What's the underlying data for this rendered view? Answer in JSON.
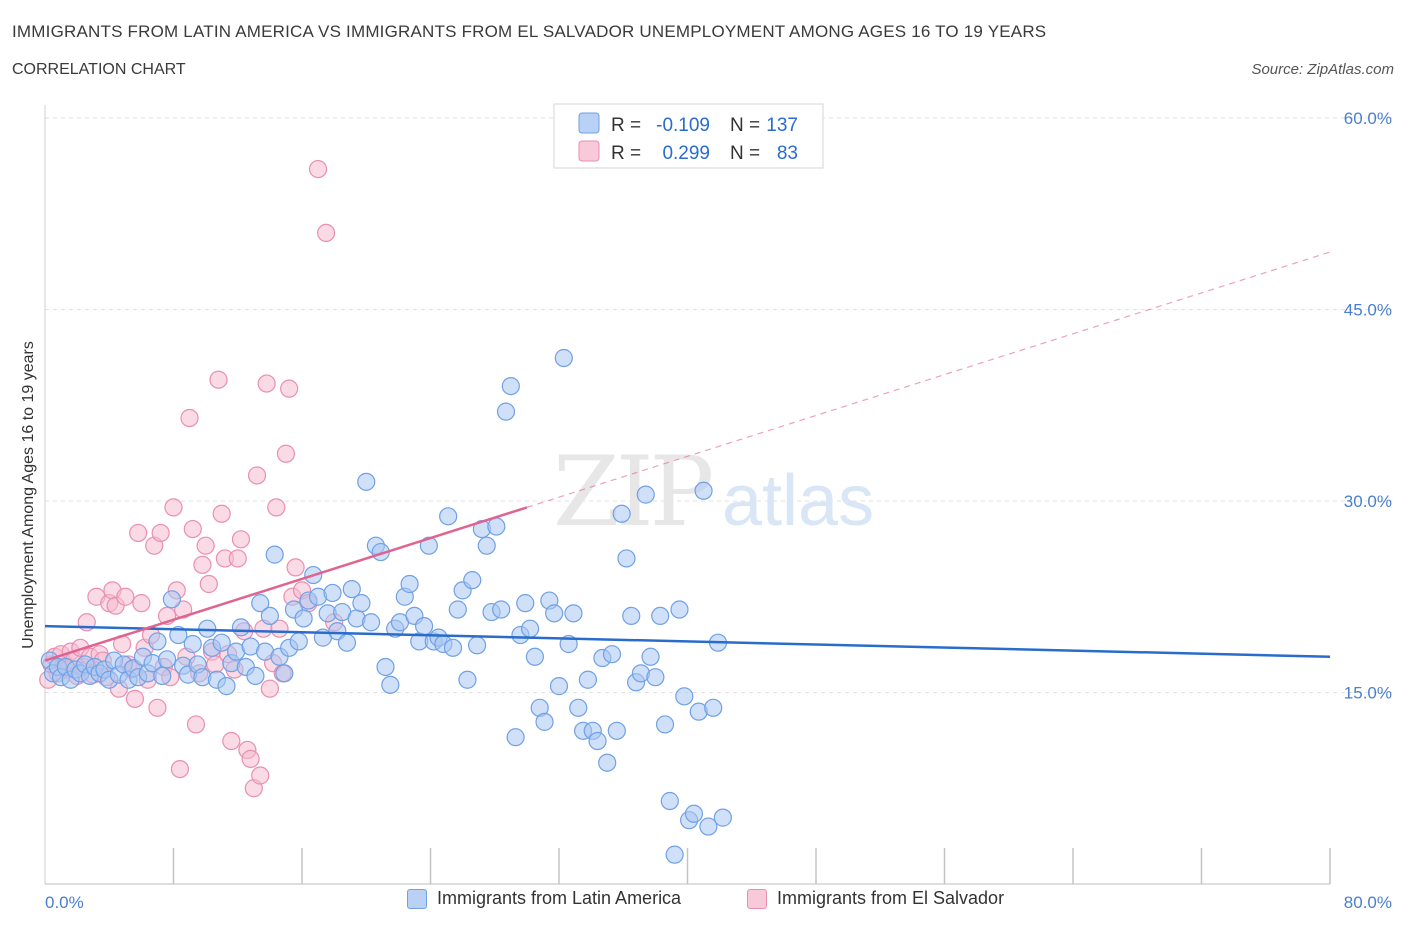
{
  "header": {
    "title": "IMMIGRANTS FROM LATIN AMERICA VS IMMIGRANTS FROM EL SALVADOR UNEMPLOYMENT AMONG AGES 16 TO 19 YEARS",
    "subtitle": "CORRELATION CHART",
    "source": "Source: ZipAtlas.com"
  },
  "watermark": {
    "zip": "ZIP",
    "atlas": "atlas"
  },
  "stats_legend": {
    "rows": [
      {
        "r_label": "R =",
        "r_value": "-0.109",
        "n_label": "N =",
        "n_value": "137"
      },
      {
        "r_label": "R =",
        "r_value": "0.299",
        "n_label": "N =",
        "n_value": "83"
      }
    ]
  },
  "colors": {
    "blue": "#6fa1e6",
    "blue_fill": "#a9c6f2",
    "blue_line": "#2a6ccc",
    "pink": "#ea8fb0",
    "pink_fill": "#f5bcd0",
    "pink_line": "#e0648f",
    "tick_text": "#4a7fcf"
  },
  "chart_data": {
    "type": "scatter",
    "title": "IMMIGRANTS FROM LATIN AMERICA VS IMMIGRANTS FROM EL SALVADOR UNEMPLOYMENT AMONG AGES 16 TO 19 YEARS",
    "xlabel": "",
    "ylabel": "Unemployment Among Ages 16 to 19 years",
    "xlim": [
      0,
      80
    ],
    "ylim": [
      0,
      60
    ],
    "x_tick_labels": [
      "0.0%",
      "80.0%"
    ],
    "y_ticks": [
      15,
      30,
      45,
      60
    ],
    "y_tick_labels": [
      "15.0%",
      "30.0%",
      "45.0%",
      "60.0%"
    ],
    "grid": true,
    "legend_position": "bottom",
    "series": [
      {
        "name": "Immigrants from Latin America",
        "color": "blue",
        "r": -0.109,
        "n": 137,
        "trend": {
          "x": [
            0,
            80
          ],
          "y": [
            20.2,
            17.8
          ]
        },
        "points": [
          [
            0.3,
            17.5
          ],
          [
            0.5,
            16.5
          ],
          [
            0.8,
            17.0
          ],
          [
            1.0,
            16.2
          ],
          [
            1.3,
            17.0
          ],
          [
            1.6,
            16.0
          ],
          [
            1.9,
            16.8
          ],
          [
            2.2,
            16.5
          ],
          [
            2.5,
            17.2
          ],
          [
            2.8,
            16.3
          ],
          [
            3.1,
            17.0
          ],
          [
            3.4,
            16.5
          ],
          [
            3.7,
            16.8
          ],
          [
            4.0,
            16.0
          ],
          [
            4.3,
            17.5
          ],
          [
            4.6,
            16.4
          ],
          [
            4.9,
            17.2
          ],
          [
            5.2,
            16.0
          ],
          [
            5.5,
            16.9
          ],
          [
            5.8,
            16.2
          ],
          [
            6.1,
            17.8
          ],
          [
            6.4,
            16.5
          ],
          [
            6.7,
            17.3
          ],
          [
            7.0,
            19.0
          ],
          [
            7.3,
            16.3
          ],
          [
            7.6,
            17.6
          ],
          [
            7.9,
            22.3
          ],
          [
            8.3,
            19.5
          ],
          [
            8.6,
            17.1
          ],
          [
            8.9,
            16.4
          ],
          [
            9.2,
            18.8
          ],
          [
            9.5,
            17.2
          ],
          [
            9.8,
            16.2
          ],
          [
            10.1,
            20.0
          ],
          [
            10.4,
            18.5
          ],
          [
            10.7,
            16.0
          ],
          [
            11.0,
            18.9
          ],
          [
            11.3,
            15.5
          ],
          [
            11.6,
            17.3
          ],
          [
            11.9,
            18.2
          ],
          [
            12.2,
            20.1
          ],
          [
            12.5,
            17.0
          ],
          [
            12.8,
            18.6
          ],
          [
            13.1,
            16.3
          ],
          [
            13.4,
            22.0
          ],
          [
            13.7,
            18.2
          ],
          [
            14.0,
            21.0
          ],
          [
            14.3,
            25.8
          ],
          [
            14.6,
            17.8
          ],
          [
            14.9,
            16.5
          ],
          [
            15.2,
            18.5
          ],
          [
            15.5,
            21.5
          ],
          [
            15.8,
            19.0
          ],
          [
            16.1,
            20.8
          ],
          [
            16.4,
            22.2
          ],
          [
            16.7,
            24.2
          ],
          [
            17.0,
            22.5
          ],
          [
            17.3,
            19.3
          ],
          [
            17.6,
            21.2
          ],
          [
            17.9,
            22.8
          ],
          [
            18.2,
            19.8
          ],
          [
            18.5,
            21.3
          ],
          [
            18.8,
            18.9
          ],
          [
            19.1,
            23.1
          ],
          [
            19.4,
            20.8
          ],
          [
            19.7,
            22.0
          ],
          [
            20.0,
            31.5
          ],
          [
            20.3,
            20.5
          ],
          [
            20.6,
            26.5
          ],
          [
            20.9,
            26.0
          ],
          [
            21.2,
            17.0
          ],
          [
            21.5,
            15.6
          ],
          [
            21.8,
            20.0
          ],
          [
            22.1,
            20.5
          ],
          [
            22.4,
            22.5
          ],
          [
            22.7,
            23.5
          ],
          [
            23.0,
            21.0
          ],
          [
            23.3,
            19.0
          ],
          [
            23.6,
            20.2
          ],
          [
            23.9,
            26.5
          ],
          [
            24.2,
            19.0
          ],
          [
            24.5,
            19.3
          ],
          [
            24.8,
            18.8
          ],
          [
            25.1,
            28.8
          ],
          [
            25.4,
            18.5
          ],
          [
            25.7,
            21.5
          ],
          [
            26.0,
            23.0
          ],
          [
            26.3,
            16.0
          ],
          [
            26.6,
            23.8
          ],
          [
            26.9,
            18.7
          ],
          [
            27.2,
            27.8
          ],
          [
            27.5,
            26.5
          ],
          [
            27.8,
            21.3
          ],
          [
            28.1,
            28.0
          ],
          [
            28.4,
            21.5
          ],
          [
            28.7,
            37.0
          ],
          [
            29.0,
            39.0
          ],
          [
            29.3,
            11.5
          ],
          [
            29.6,
            19.5
          ],
          [
            29.9,
            22.0
          ],
          [
            30.2,
            20.0
          ],
          [
            30.5,
            17.8
          ],
          [
            30.8,
            13.8
          ],
          [
            31.1,
            12.7
          ],
          [
            31.4,
            22.2
          ],
          [
            31.7,
            21.2
          ],
          [
            32.0,
            15.5
          ],
          [
            32.3,
            41.2
          ],
          [
            32.6,
            18.8
          ],
          [
            32.9,
            21.2
          ],
          [
            33.2,
            13.8
          ],
          [
            33.5,
            12.0
          ],
          [
            33.8,
            16.0
          ],
          [
            34.1,
            12.0
          ],
          [
            34.4,
            11.2
          ],
          [
            34.7,
            17.7
          ],
          [
            35.0,
            9.5
          ],
          [
            35.3,
            18.0
          ],
          [
            35.6,
            12.0
          ],
          [
            35.9,
            29.0
          ],
          [
            36.2,
            25.5
          ],
          [
            36.5,
            21.0
          ],
          [
            36.8,
            15.8
          ],
          [
            37.1,
            16.5
          ],
          [
            37.4,
            30.5
          ],
          [
            37.7,
            17.8
          ],
          [
            38.0,
            16.2
          ],
          [
            38.3,
            21.0
          ],
          [
            38.6,
            12.5
          ],
          [
            38.9,
            6.5
          ],
          [
            39.2,
            2.3
          ],
          [
            39.5,
            21.5
          ],
          [
            39.8,
            14.7
          ],
          [
            40.1,
            5.0
          ],
          [
            40.4,
            5.5
          ],
          [
            40.7,
            13.5
          ],
          [
            41.0,
            30.8
          ],
          [
            41.3,
            4.5
          ],
          [
            41.6,
            13.8
          ],
          [
            41.9,
            18.9
          ],
          [
            42.2,
            5.2
          ]
        ]
      },
      {
        "name": "Immigrants from El Salvador",
        "color": "pink",
        "r": 0.299,
        "n": 83,
        "trend": {
          "x": [
            0,
            30
          ],
          "y": [
            17.5,
            29.5
          ]
        },
        "trend_extension": {
          "x": [
            30,
            80
          ],
          "y": [
            29.5,
            49.5
          ]
        },
        "points": [
          [
            0.2,
            16.0
          ],
          [
            0.4,
            17.2
          ],
          [
            0.6,
            17.8
          ],
          [
            0.8,
            16.5
          ],
          [
            1.0,
            18.0
          ],
          [
            1.2,
            17.3
          ],
          [
            1.4,
            16.8
          ],
          [
            1.6,
            18.2
          ],
          [
            1.8,
            17.5
          ],
          [
            2.0,
            16.3
          ],
          [
            2.2,
            18.5
          ],
          [
            2.4,
            17.0
          ],
          [
            2.6,
            20.5
          ],
          [
            2.8,
            17.8
          ],
          [
            3.0,
            16.4
          ],
          [
            3.2,
            22.5
          ],
          [
            3.4,
            18.0
          ],
          [
            3.6,
            17.5
          ],
          [
            3.8,
            16.2
          ],
          [
            4.0,
            22.0
          ],
          [
            4.2,
            23.0
          ],
          [
            4.4,
            21.8
          ],
          [
            4.6,
            15.3
          ],
          [
            4.8,
            18.8
          ],
          [
            5.0,
            22.5
          ],
          [
            5.2,
            17.2
          ],
          [
            5.4,
            16.8
          ],
          [
            5.6,
            14.5
          ],
          [
            5.8,
            27.5
          ],
          [
            6.0,
            22.0
          ],
          [
            6.2,
            18.5
          ],
          [
            6.4,
            16.0
          ],
          [
            6.6,
            19.5
          ],
          [
            6.8,
            26.5
          ],
          [
            7.0,
            13.8
          ],
          [
            7.2,
            27.5
          ],
          [
            7.4,
            17.0
          ],
          [
            7.6,
            21.0
          ],
          [
            7.8,
            16.2
          ],
          [
            8.0,
            29.5
          ],
          [
            8.2,
            23.0
          ],
          [
            8.4,
            9.0
          ],
          [
            8.6,
            21.5
          ],
          [
            8.8,
            17.8
          ],
          [
            9.0,
            36.5
          ],
          [
            9.2,
            27.8
          ],
          [
            9.4,
            12.5
          ],
          [
            9.6,
            16.5
          ],
          [
            9.8,
            25.0
          ],
          [
            10.0,
            26.5
          ],
          [
            10.2,
            23.5
          ],
          [
            10.4,
            18.2
          ],
          [
            10.6,
            17.2
          ],
          [
            10.8,
            39.5
          ],
          [
            11.0,
            29.0
          ],
          [
            11.2,
            25.5
          ],
          [
            11.4,
            18.0
          ],
          [
            11.6,
            11.2
          ],
          [
            11.8,
            16.8
          ],
          [
            12.0,
            25.5
          ],
          [
            12.2,
            27.0
          ],
          [
            12.4,
            19.8
          ],
          [
            12.6,
            10.5
          ],
          [
            12.8,
            9.8
          ],
          [
            13.0,
            7.5
          ],
          [
            13.2,
            32.0
          ],
          [
            13.4,
            8.5
          ],
          [
            13.6,
            20.0
          ],
          [
            13.8,
            39.2
          ],
          [
            14.0,
            15.3
          ],
          [
            14.2,
            17.3
          ],
          [
            14.4,
            29.5
          ],
          [
            14.6,
            20.0
          ],
          [
            14.8,
            16.5
          ],
          [
            15.0,
            33.7
          ],
          [
            15.2,
            38.8
          ],
          [
            15.4,
            22.5
          ],
          [
            15.6,
            24.8
          ],
          [
            16.0,
            23.0
          ],
          [
            16.4,
            22.0
          ],
          [
            17.0,
            56.0
          ],
          [
            17.5,
            51.0
          ],
          [
            18.0,
            20.5
          ]
        ]
      }
    ]
  },
  "bottom_legend": {
    "items": [
      {
        "label": "Immigrants from Latin America"
      },
      {
        "label": "Immigrants from El Salvador"
      }
    ]
  }
}
